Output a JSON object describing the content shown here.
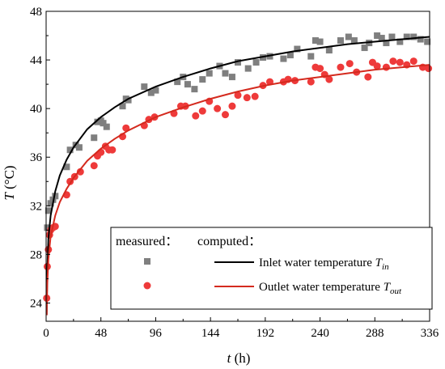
{
  "chart_data": {
    "type": "scatter",
    "xlabel": {
      "var": "t",
      "unit": " (h)"
    },
    "ylabel": {
      "var": "T",
      "unit": " (°C)"
    },
    "xlim": [
      0,
      336
    ],
    "ylim": [
      22.5,
      48
    ],
    "xticks": [
      0,
      48,
      96,
      144,
      192,
      240,
      288,
      336
    ],
    "yticks": [
      24,
      28,
      32,
      36,
      40,
      44,
      48
    ],
    "grid": false,
    "legend": {
      "placement": "bottom-right",
      "measured_header": "measured：",
      "computed_header": "computed："
    },
    "series": [
      {
        "name": "Inlet water temperature",
        "symbol": "T",
        "subscript": "in",
        "measured_marker": "square",
        "measured_color": "#7f7f7f",
        "line_color": "#000000",
        "measured_points": [
          [
            1,
            30.2
          ],
          [
            2,
            31.6
          ],
          [
            4,
            32.2
          ],
          [
            6,
            32.5
          ],
          [
            8,
            32.8
          ],
          [
            18,
            35.2
          ],
          [
            21,
            36.6
          ],
          [
            26,
            37.0
          ],
          [
            29,
            36.8
          ],
          [
            42,
            37.6
          ],
          [
            45,
            38.9
          ],
          [
            48,
            39.0
          ],
          [
            50,
            38.8
          ],
          [
            53,
            38.5
          ],
          [
            67,
            40.2
          ],
          [
            70,
            40.8
          ],
          [
            72,
            40.7
          ],
          [
            86,
            41.8
          ],
          [
            92,
            41.3
          ],
          [
            96,
            41.5
          ],
          [
            115,
            42.2
          ],
          [
            120,
            42.6
          ],
          [
            124,
            42.0
          ],
          [
            130,
            41.6
          ],
          [
            137,
            42.4
          ],
          [
            143,
            42.9
          ],
          [
            152,
            43.5
          ],
          [
            157,
            42.9
          ],
          [
            163,
            42.6
          ],
          [
            168,
            43.8
          ],
          [
            177,
            43.3
          ],
          [
            184,
            43.8
          ],
          [
            190,
            44.2
          ],
          [
            196,
            44.3
          ],
          [
            208,
            44.1
          ],
          [
            214,
            44.4
          ],
          [
            220,
            44.9
          ],
          [
            232,
            44.3
          ],
          [
            236,
            45.6
          ],
          [
            240,
            45.5
          ],
          [
            248,
            44.8
          ],
          [
            258,
            45.6
          ],
          [
            265,
            45.9
          ],
          [
            270,
            45.6
          ],
          [
            279,
            45.0
          ],
          [
            283,
            45.4
          ],
          [
            290,
            46.0
          ],
          [
            294,
            45.8
          ],
          [
            298,
            45.4
          ],
          [
            303,
            45.9
          ],
          [
            310,
            45.5
          ],
          [
            316,
            45.9
          ],
          [
            322,
            45.9
          ],
          [
            328,
            45.7
          ],
          [
            334,
            45.5
          ]
        ],
        "computed_curve": [
          [
            0.5,
            23.0
          ],
          [
            1,
            26.5
          ],
          [
            2,
            29.3
          ],
          [
            4,
            31.2
          ],
          [
            8,
            33.2
          ],
          [
            12,
            34.5
          ],
          [
            18,
            35.8
          ],
          [
            24,
            36.8
          ],
          [
            36,
            38.3
          ],
          [
            48,
            39.3
          ],
          [
            60,
            40.1
          ],
          [
            72,
            40.8
          ],
          [
            96,
            41.8
          ],
          [
            120,
            42.6
          ],
          [
            144,
            43.3
          ],
          [
            168,
            43.9
          ],
          [
            192,
            44.3
          ],
          [
            216,
            44.7
          ],
          [
            240,
            45.0
          ],
          [
            264,
            45.3
          ],
          [
            288,
            45.5
          ],
          [
            312,
            45.7
          ],
          [
            336,
            45.9
          ]
        ]
      },
      {
        "name": "Outlet water temperature",
        "symbol": "T",
        "subscript": "out",
        "measured_marker": "circle",
        "measured_color": "#ee3a3a",
        "line_color": "#d42a1e",
        "measured_points": [
          [
            0.5,
            24.4
          ],
          [
            1,
            27.0
          ],
          [
            2,
            28.4
          ],
          [
            3,
            29.6
          ],
          [
            4,
            30.0
          ],
          [
            6,
            30.2
          ],
          [
            8,
            30.3
          ],
          [
            18,
            32.9
          ],
          [
            21,
            34.0
          ],
          [
            25,
            34.4
          ],
          [
            30,
            34.8
          ],
          [
            42,
            35.3
          ],
          [
            45,
            36.1
          ],
          [
            48,
            36.4
          ],
          [
            52,
            36.9
          ],
          [
            55,
            36.6
          ],
          [
            58,
            36.6
          ],
          [
            67,
            37.7
          ],
          [
            70,
            38.4
          ],
          [
            86,
            38.6
          ],
          [
            90,
            39.1
          ],
          [
            95,
            39.3
          ],
          [
            112,
            39.6
          ],
          [
            118,
            40.2
          ],
          [
            122,
            40.2
          ],
          [
            131,
            39.4
          ],
          [
            137,
            39.8
          ],
          [
            143,
            40.6
          ],
          [
            150,
            40.0
          ],
          [
            157,
            39.5
          ],
          [
            163,
            40.2
          ],
          [
            168,
            41.1
          ],
          [
            176,
            40.9
          ],
          [
            183,
            41.0
          ],
          [
            190,
            41.9
          ],
          [
            196,
            42.2
          ],
          [
            208,
            42.2
          ],
          [
            212,
            42.4
          ],
          [
            218,
            42.3
          ],
          [
            232,
            42.2
          ],
          [
            236,
            43.4
          ],
          [
            240,
            43.3
          ],
          [
            244,
            42.8
          ],
          [
            248,
            42.4
          ],
          [
            258,
            43.4
          ],
          [
            266,
            43.7
          ],
          [
            272,
            43.0
          ],
          [
            282,
            42.6
          ],
          [
            286,
            43.8
          ],
          [
            290,
            43.5
          ],
          [
            298,
            43.4
          ],
          [
            304,
            43.9
          ],
          [
            310,
            43.8
          ],
          [
            316,
            43.6
          ],
          [
            322,
            43.9
          ],
          [
            330,
            43.4
          ],
          [
            335,
            43.3
          ]
        ],
        "computed_curve": [
          [
            0.5,
            23.0
          ],
          [
            1,
            25.5
          ],
          [
            2,
            27.6
          ],
          [
            4,
            29.5
          ],
          [
            8,
            31.2
          ],
          [
            12,
            32.3
          ],
          [
            18,
            33.4
          ],
          [
            24,
            34.3
          ],
          [
            36,
            35.7
          ],
          [
            48,
            36.7
          ],
          [
            60,
            37.5
          ],
          [
            72,
            38.2
          ],
          [
            96,
            39.3
          ],
          [
            120,
            40.1
          ],
          [
            144,
            40.8
          ],
          [
            168,
            41.4
          ],
          [
            192,
            41.9
          ],
          [
            216,
            42.3
          ],
          [
            240,
            42.6
          ],
          [
            264,
            42.9
          ],
          [
            288,
            43.2
          ],
          [
            312,
            43.4
          ],
          [
            336,
            43.6
          ]
        ]
      }
    ]
  }
}
